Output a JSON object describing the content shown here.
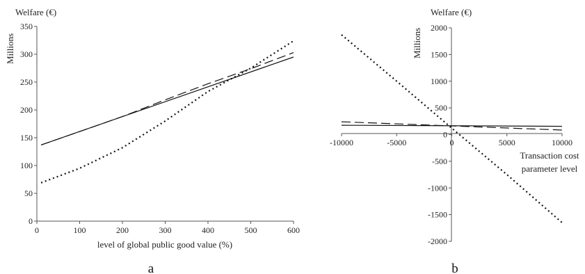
{
  "chart_data": [
    {
      "type": "line",
      "panel_label": "a",
      "title": "",
      "yunit_label": "Welfare (€)",
      "ylabel": "Millions",
      "xlabel": "level of global public good value (%)",
      "xlim": [
        0,
        600
      ],
      "ylim": [
        0,
        350
      ],
      "xticks": [
        "0",
        "100",
        "200",
        "300",
        "400",
        "500",
        "600"
      ],
      "yticks": [
        "0",
        "50",
        "100",
        "150",
        "200",
        "250",
        "300",
        "350"
      ],
      "grid": false,
      "series": [
        {
          "style": "solid",
          "x": [
            10,
            600
          ],
          "y": [
            137,
            295
          ]
        },
        {
          "style": "dashed",
          "x": [
            10,
            100,
            200,
            300,
            400,
            500,
            600
          ],
          "y": [
            137,
            161,
            188,
            218,
            247,
            274,
            303
          ]
        },
        {
          "style": "dotted",
          "x": [
            10,
            100,
            200,
            300,
            400,
            500,
            600
          ],
          "y": [
            69,
            95,
            132,
            180,
            233,
            275,
            324
          ]
        }
      ]
    },
    {
      "type": "line",
      "panel_label": "b",
      "title": "",
      "yunit_label": "Welfare (€)",
      "ylabel": "Millions",
      "xlabel_lines": [
        "Transaction cost",
        "parameter level"
      ],
      "xlim": [
        -10000,
        10000
      ],
      "ylim": [
        -2000,
        2000
      ],
      "xticks": [
        "-10000",
        "-5000",
        "0",
        "5000",
        "10000"
      ],
      "yticks": [
        "-2000",
        "-1500",
        "-1000",
        "-500",
        "0",
        "500",
        "1000",
        "1500",
        "2000"
      ],
      "grid": false,
      "series": [
        {
          "style": "solid",
          "x": [
            -10000,
            10000
          ],
          "y": [
            175,
            155
          ]
        },
        {
          "style": "dashed",
          "x": [
            -10000,
            10000
          ],
          "y": [
            240,
            85
          ]
        },
        {
          "style": "dotted",
          "x": [
            -10000,
            -5000,
            0,
            5000,
            10000
          ],
          "y": [
            1870,
            1000,
            120,
            -750,
            -1650
          ]
        }
      ]
    }
  ]
}
